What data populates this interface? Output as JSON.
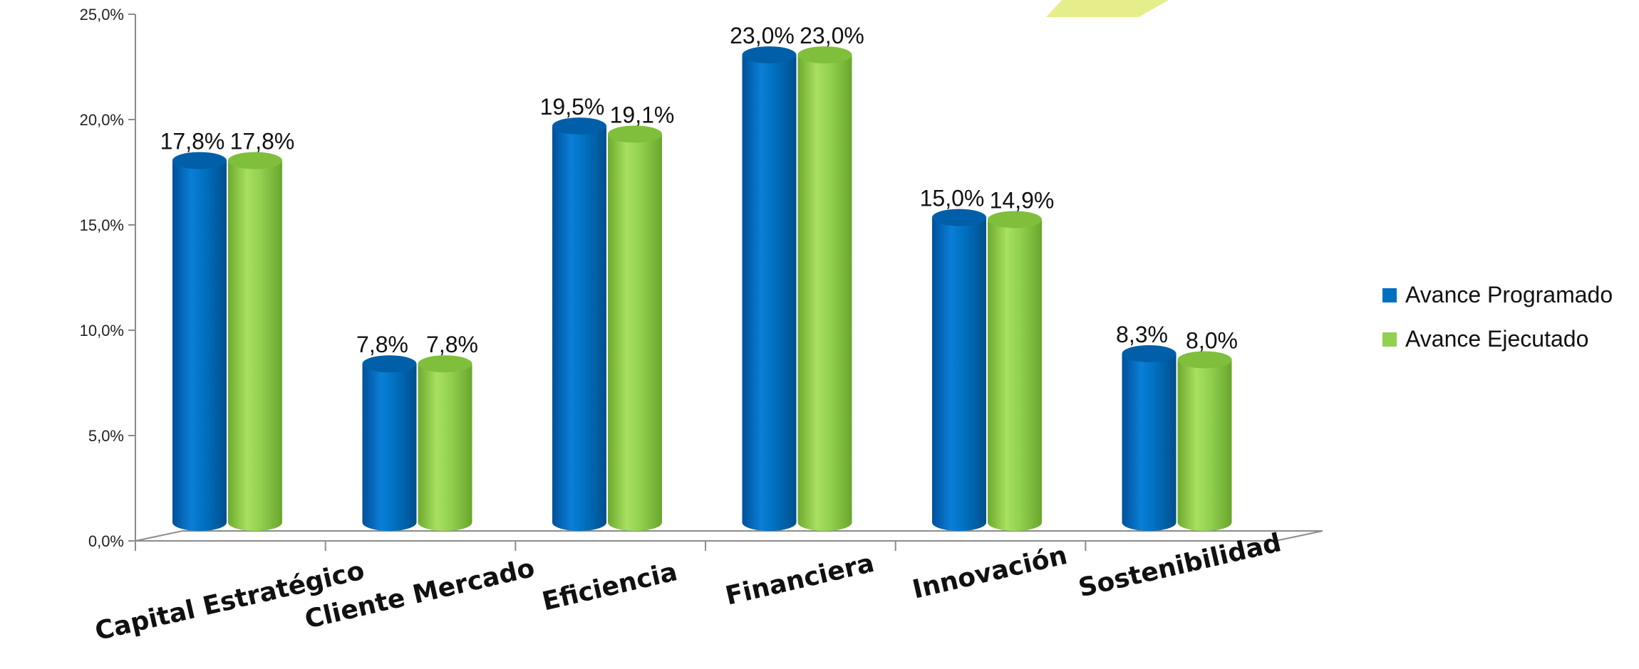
{
  "chart_data": {
    "type": "bar",
    "categories": [
      "Capital Estratégico",
      "Cliente Mercado",
      "Eficiencia",
      "Financiera",
      "Innovación",
      "Sostenibilidad"
    ],
    "series": [
      {
        "name": "Avance Programado",
        "values": [
          17.8,
          7.8,
          19.5,
          23.0,
          15.0,
          8.3
        ],
        "labels": [
          "17,8%",
          "7,8%",
          "19,5%",
          "23,0%",
          "15,0%",
          "8,3%"
        ],
        "color": "#0070C0"
      },
      {
        "name": "Avance Ejecutado",
        "values": [
          17.8,
          7.8,
          19.1,
          23.0,
          14.9,
          8.0
        ],
        "labels": [
          "17,8%",
          "7,8%",
          "19,1%",
          "23,0%",
          "14,9%",
          "8,0%"
        ],
        "color": "#92D050"
      }
    ],
    "ylim": [
      0,
      25
    ],
    "yticks": [
      "0,0%",
      "5,0%",
      "10,0%",
      "15,0%",
      "20,0%",
      "25,0%"
    ],
    "legend_position": "right",
    "title": "",
    "xlabel": "",
    "ylabel": ""
  },
  "colors": {
    "decoration": "#E6EE8C",
    "axis": "#8c8c8c"
  }
}
